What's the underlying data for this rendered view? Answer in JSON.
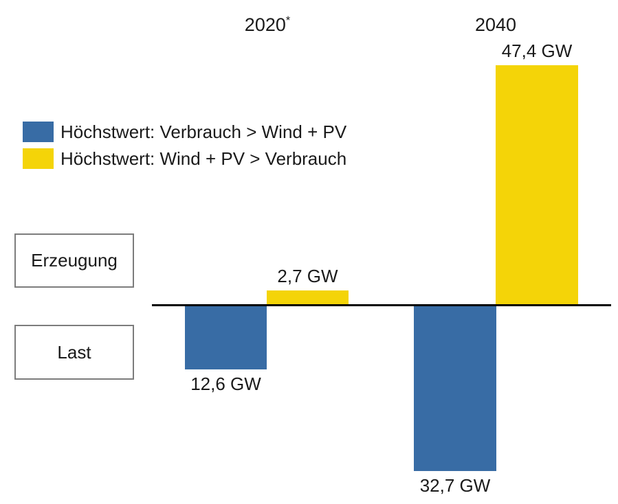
{
  "chart_data": {
    "type": "bar",
    "subtype": "diverging-paired-bars",
    "unit": "GW",
    "categories": [
      "2020",
      "2040"
    ],
    "category_footnote_markers": [
      "*",
      ""
    ],
    "series": [
      {
        "name": "Höchstwert: Verbrauch > Wind + PV",
        "color": "#386CA5",
        "direction": "down",
        "values": [
          12.6,
          32.7
        ],
        "value_labels": [
          "12,6 GW",
          "32,7 GW"
        ]
      },
      {
        "name": "Höchstwert: Wind + PV > Verbrauch",
        "color": "#F4D408",
        "direction": "up",
        "values": [
          2.7,
          47.4
        ],
        "value_labels": [
          "2,7 GW",
          "47,4 GW"
        ]
      }
    ],
    "row_labels": {
      "above_axis": "Erzeugung",
      "below_axis": "Last"
    },
    "axis_color": "#000000",
    "text_color": "#1a1a1a",
    "box_border_color": "#7c7c7c",
    "legend_position": "upper-left",
    "grid": false,
    "baseline_value": 0
  }
}
